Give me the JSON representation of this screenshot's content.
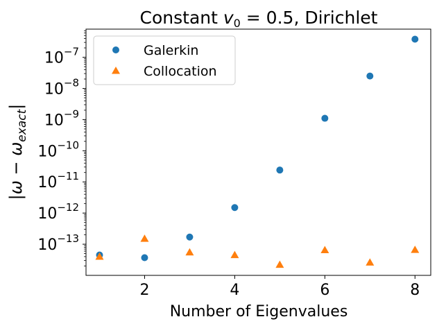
{
  "chart_data": {
    "type": "scatter",
    "title": "Constant v₀ = 0.5, Dirichlet",
    "xlabel": "Number of Eigenvalues",
    "ylabel": "|ω − ωexact|",
    "xlim": [
      0.7,
      8.35
    ],
    "ylim": [
      1e-14,
      8e-07
    ],
    "yscale": "log",
    "xticks": [
      2,
      4,
      6,
      8
    ],
    "yticks": [
      -13,
      -12,
      -11,
      -10,
      -9,
      -8,
      -7
    ],
    "legend_position": "top-left",
    "grid": false,
    "series": [
      {
        "name": "Galerkin",
        "marker": "circle",
        "color": "#1f77b4",
        "x": [
          1,
          2,
          3,
          4,
          5,
          6,
          7,
          8
        ],
        "y": [
          4.5e-14,
          3.7e-14,
          1.7e-13,
          1.5e-12,
          2.4e-11,
          1.1e-09,
          2.5e-08,
          3.8e-07
        ]
      },
      {
        "name": "Collocation",
        "marker": "triangle",
        "color": "#ff7f0e",
        "x": [
          1,
          2,
          3,
          4,
          5,
          6,
          7,
          8
        ],
        "y": [
          4e-14,
          1.5e-13,
          5.5e-14,
          4.5e-14,
          2.2e-14,
          6.5e-14,
          2.6e-14,
          6.6e-14
        ]
      }
    ]
  }
}
